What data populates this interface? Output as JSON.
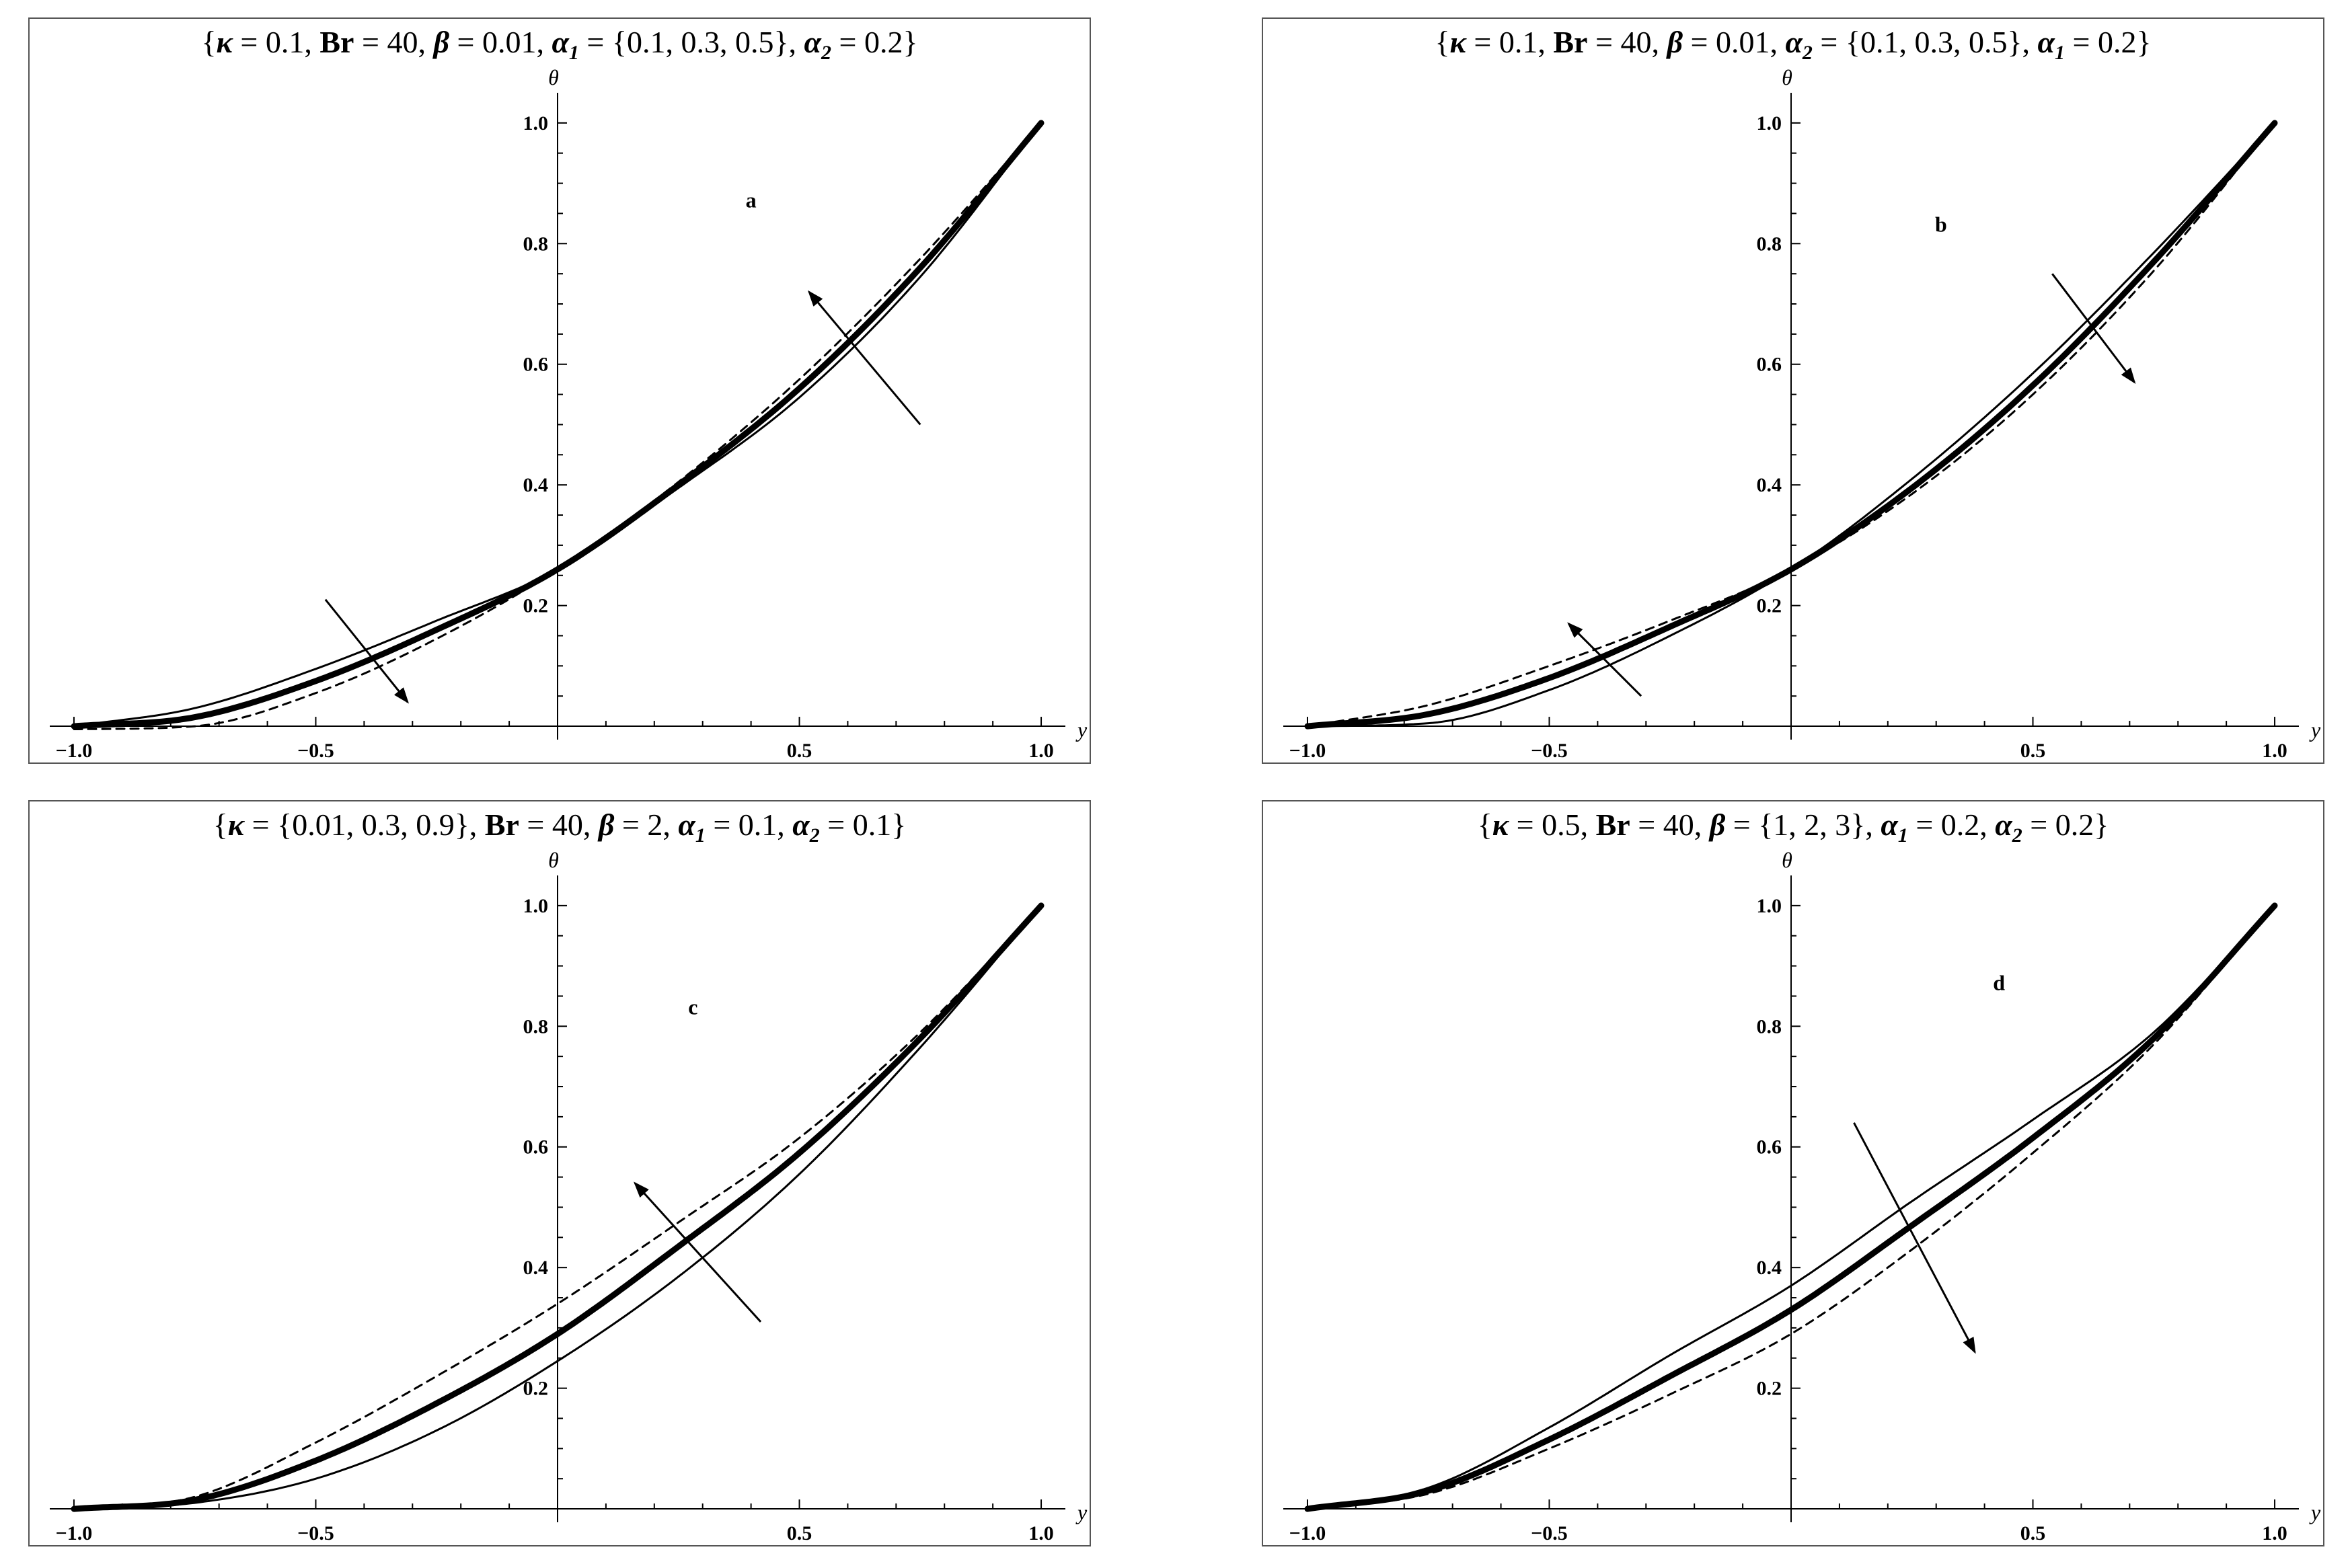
{
  "chart_data": [
    {
      "type": "line",
      "panel": "a",
      "title": "{κ = 0.1, Br = 40, β = 0.01, α1 = {0.1, 0.3, 0.5}, α2 = 0.2}",
      "title_parts": {
        "kappa": "0.1",
        "Br": "40",
        "beta": "0.01",
        "a1": "{0.1, 0.3, 0.5}",
        "a2": "0.2"
      },
      "xlabel": "y",
      "ylabel": "θ",
      "xlim": [
        -1.05,
        1.05
      ],
      "ylim": [
        -0.02,
        1.05
      ],
      "xticks": [
        -1.0,
        -0.5,
        0.5,
        1.0
      ],
      "xtick_labels": [
        "−1.0",
        "−0.5",
        "0.5",
        "1.0"
      ],
      "yticks": [
        0.2,
        0.4,
        0.6,
        0.8,
        1.0
      ],
      "ytick_labels": [
        "0.2",
        "0.4",
        "0.6",
        "0.8",
        "1.0"
      ],
      "annotation": "a",
      "series": [
        {
          "style": "thin",
          "x": [
            -1.0,
            -0.75,
            -0.5,
            -0.25,
            0.0,
            0.25,
            0.5,
            0.75,
            1.0
          ],
          "y": [
            0.0,
            0.03,
            0.095,
            0.175,
            0.26,
            0.395,
            0.545,
            0.745,
            1.0
          ]
        },
        {
          "style": "thick",
          "x": [
            -1.0,
            -0.75,
            -0.5,
            -0.25,
            0.0,
            0.25,
            0.5,
            0.75,
            1.0
          ],
          "y": [
            0.0,
            0.015,
            0.075,
            0.16,
            0.26,
            0.4,
            0.56,
            0.76,
            1.0
          ]
        },
        {
          "style": "dashed",
          "x": [
            -1.0,
            -0.75,
            -0.5,
            -0.25,
            0.0,
            0.25,
            0.5,
            0.75,
            1.0
          ],
          "y": [
            -0.005,
            0.0,
            0.055,
            0.145,
            0.26,
            0.405,
            0.575,
            0.775,
            1.0
          ]
        }
      ],
      "arrows": [
        {
          "x1": 0.75,
          "y1": 0.5,
          "x2": 0.52,
          "y2": 0.72
        },
        {
          "x1": -0.48,
          "y1": 0.21,
          "x2": -0.31,
          "y2": 0.04
        }
      ]
    },
    {
      "type": "line",
      "panel": "b",
      "title": "{κ = 0.1, Br = 40, β = 0.01, α2 = {0.1, 0.3, 0.5}, α1 = 0.2}",
      "title_parts": {
        "kappa": "0.1",
        "Br": "40",
        "beta": "0.01",
        "a2": "{0.1, 0.3, 0.5}",
        "a1": "0.2"
      },
      "xlabel": "y",
      "ylabel": "θ",
      "xlim": [
        -1.05,
        1.05
      ],
      "ylim": [
        -0.02,
        1.05
      ],
      "xticks": [
        -1.0,
        -0.5,
        0.5,
        1.0
      ],
      "xtick_labels": [
        "−1.0",
        "−0.5",
        "0.5",
        "1.0"
      ],
      "yticks": [
        0.2,
        0.4,
        0.6,
        0.8,
        1.0
      ],
      "ytick_labels": [
        "0.2",
        "0.4",
        "0.6",
        "0.8",
        "1.0"
      ],
      "annotation": "b",
      "series": [
        {
          "style": "thin",
          "x": [
            -1.0,
            -0.75,
            -0.5,
            -0.25,
            0.0,
            0.25,
            0.5,
            0.75,
            1.0
          ],
          "y": [
            0.0,
            0.005,
            0.06,
            0.15,
            0.26,
            0.41,
            0.585,
            0.785,
            1.0
          ]
        },
        {
          "style": "thick",
          "x": [
            -1.0,
            -0.75,
            -0.5,
            -0.25,
            0.0,
            0.25,
            0.5,
            0.75,
            1.0
          ],
          "y": [
            0.0,
            0.02,
            0.08,
            0.165,
            0.26,
            0.395,
            0.565,
            0.77,
            1.0
          ]
        },
        {
          "style": "dashed",
          "x": [
            -1.0,
            -0.75,
            -0.5,
            -0.25,
            0.0,
            0.25,
            0.5,
            0.75,
            1.0
          ],
          "y": [
            0.0,
            0.035,
            0.1,
            0.175,
            0.26,
            0.385,
            0.55,
            0.755,
            1.0
          ]
        }
      ],
      "arrows": [
        {
          "x1": 0.54,
          "y1": 0.75,
          "x2": 0.71,
          "y2": 0.57
        },
        {
          "x1": -0.31,
          "y1": 0.05,
          "x2": -0.46,
          "y2": 0.17
        }
      ]
    },
    {
      "type": "line",
      "panel": "c",
      "title": "{κ = {0.01, 0.3, 0.9}, Br = 40, β = 2, α1 = 0.1, α2 = 0.1}",
      "title_parts": {
        "kappa": "{0.01, 0.3, 0.9}",
        "Br": "40",
        "beta": "2",
        "a1": "0.1",
        "a2": "0.1"
      },
      "xlabel": "y",
      "ylabel": "θ",
      "xlim": [
        -1.05,
        1.05
      ],
      "ylim": [
        -0.02,
        1.05
      ],
      "xticks": [
        -1.0,
        -0.5,
        0.5,
        1.0
      ],
      "xtick_labels": [
        "−1.0",
        "−0.5",
        "0.5",
        "1.0"
      ],
      "yticks": [
        0.2,
        0.4,
        0.6,
        0.8,
        1.0
      ],
      "ytick_labels": [
        "0.2",
        "0.4",
        "0.6",
        "0.8",
        "1.0"
      ],
      "annotation": "c",
      "series": [
        {
          "style": "thin",
          "x": [
            -1.0,
            -0.75,
            -0.5,
            -0.25,
            0.0,
            0.25,
            0.5,
            0.75,
            1.0
          ],
          "y": [
            0.0,
            0.01,
            0.05,
            0.13,
            0.245,
            0.385,
            0.555,
            0.765,
            1.0
          ]
        },
        {
          "style": "thick",
          "x": [
            -1.0,
            -0.75,
            -0.5,
            -0.25,
            0.0,
            0.25,
            0.5,
            0.75,
            1.0
          ],
          "y": [
            0.0,
            0.015,
            0.08,
            0.175,
            0.29,
            0.435,
            0.59,
            0.78,
            1.0
          ]
        },
        {
          "style": "dashed",
          "x": [
            -1.0,
            -0.75,
            -0.5,
            -0.25,
            0.0,
            0.25,
            0.5,
            0.75,
            1.0
          ],
          "y": [
            0.0,
            0.02,
            0.11,
            0.22,
            0.34,
            0.475,
            0.615,
            0.79,
            1.0
          ]
        }
      ],
      "arrows": [
        {
          "x1": 0.42,
          "y1": 0.31,
          "x2": 0.16,
          "y2": 0.54
        }
      ]
    },
    {
      "type": "line",
      "panel": "d",
      "title": "{κ = 0.5, Br = 40, β = {1, 2, 3}, α1 = 0.2, α2 = 0.2}",
      "title_parts": {
        "kappa": "0.5",
        "Br": "40",
        "beta": "{1, 2, 3}",
        "a1": "0.2",
        "a2": "0.2"
      },
      "xlabel": "y",
      "ylabel": "θ",
      "xlim": [
        -1.05,
        1.05
      ],
      "ylim": [
        -0.02,
        1.05
      ],
      "xticks": [
        -1.0,
        -0.5,
        0.5,
        1.0
      ],
      "xtick_labels": [
        "−1.0",
        "−0.5",
        "0.5",
        "1.0"
      ],
      "yticks": [
        0.2,
        0.4,
        0.6,
        0.8,
        1.0
      ],
      "ytick_labels": [
        "0.2",
        "0.4",
        "0.6",
        "0.8",
        "1.0"
      ],
      "annotation": "d",
      "series": [
        {
          "style": "thin",
          "x": [
            -1.0,
            -0.75,
            -0.5,
            -0.25,
            0.0,
            0.25,
            0.5,
            0.75,
            1.0
          ],
          "y": [
            0.0,
            0.035,
            0.135,
            0.255,
            0.37,
            0.51,
            0.645,
            0.79,
            1.0
          ]
        },
        {
          "style": "thick",
          "x": [
            -1.0,
            -0.75,
            -0.5,
            -0.25,
            0.0,
            0.25,
            0.5,
            0.75,
            1.0
          ],
          "y": [
            0.0,
            0.03,
            0.115,
            0.22,
            0.33,
            0.47,
            0.615,
            0.78,
            1.0
          ]
        },
        {
          "style": "dashed",
          "x": [
            -1.0,
            -0.75,
            -0.5,
            -0.25,
            0.0,
            0.25,
            0.5,
            0.75,
            1.0
          ],
          "y": [
            0.0,
            0.025,
            0.1,
            0.19,
            0.29,
            0.43,
            0.59,
            0.77,
            1.0
          ]
        }
      ],
      "arrows": [
        {
          "x1": 0.13,
          "y1": 0.64,
          "x2": 0.38,
          "y2": 0.26
        }
      ]
    }
  ]
}
